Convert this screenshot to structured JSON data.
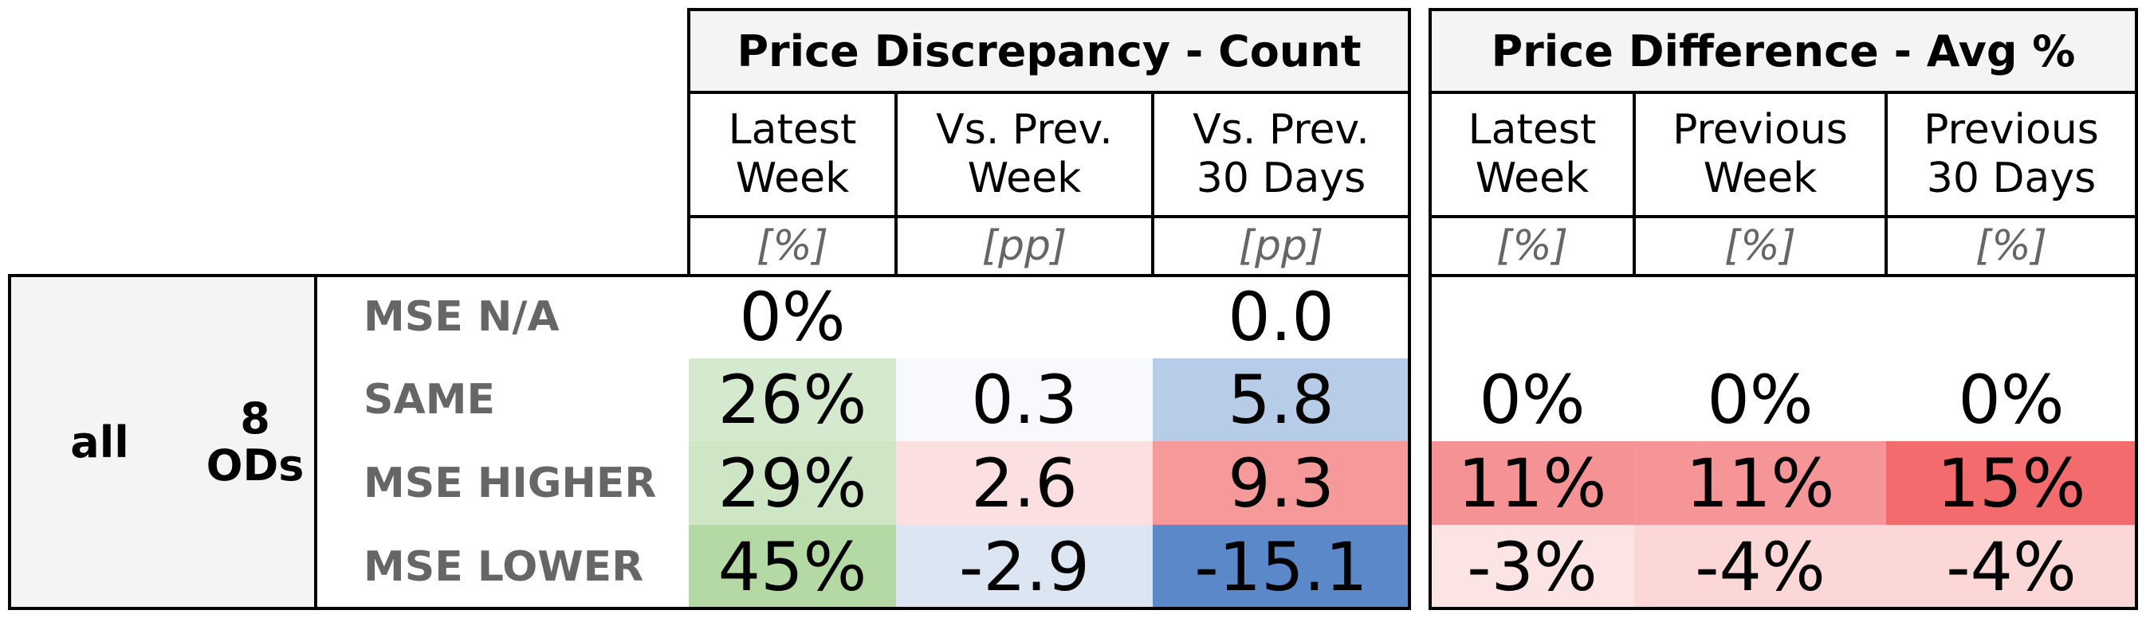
{
  "group_a": {
    "title": "Price Discrepancy - Count",
    "columns": [
      {
        "label_1": "Latest",
        "label_2": "Week",
        "unit": "[%]"
      },
      {
        "label_1": "Vs. Prev.",
        "label_2": "Week",
        "unit": "[pp]"
      },
      {
        "label_1": "Vs. Prev.",
        "label_2": "30 Days",
        "unit": "[pp]"
      }
    ]
  },
  "group_b": {
    "title": "Price Difference - Avg %",
    "columns": [
      {
        "label_1": "Latest",
        "label_2": "Week",
        "unit": "[%]"
      },
      {
        "label_1": "Previous",
        "label_2": "Week",
        "unit": "[%]"
      },
      {
        "label_1": "Previous",
        "label_2": "30 Days",
        "unit": "[%]"
      }
    ]
  },
  "segment": {
    "scope": "all",
    "count_1": "8",
    "count_2": "ODs"
  },
  "rows": [
    {
      "label": "MSE N/A",
      "a": [
        "0%",
        "",
        "0.0"
      ],
      "a_colors": [
        "#ffffff",
        "#ffffff",
        "#ffffff"
      ],
      "b": [
        "",
        "",
        ""
      ],
      "b_colors": [
        "#ffffff",
        "#ffffff",
        "#ffffff"
      ]
    },
    {
      "label": "SAME",
      "a": [
        "26%",
        "0.3",
        "5.8"
      ],
      "a_colors": [
        "#d4e9cd",
        "#f7f9fc",
        "#b7cce6"
      ],
      "b": [
        "0%",
        "0%",
        "0%"
      ],
      "b_colors": [
        "#ffffff",
        "#ffffff",
        "#ffffff"
      ]
    },
    {
      "label": "MSE HIGHER",
      "a": [
        "29%",
        "2.6",
        "9.3"
      ],
      "a_colors": [
        "#cfe6c6",
        "#fcdfe1",
        "#f6999b"
      ],
      "b": [
        "11%",
        "11%",
        "15%"
      ],
      "b_colors": [
        "#f59295",
        "#f59598",
        "#f36b6d"
      ]
    },
    {
      "label": "MSE LOWER",
      "a": [
        "45%",
        "-2.9",
        "-15.1"
      ],
      "a_colors": [
        "#b4d9a4",
        "#dce5f2",
        "#5b88c8"
      ],
      "b": [
        "-3%",
        "-4%",
        "-4%"
      ],
      "b_colors": [
        "#fce3e4",
        "#fbd7d8",
        "#fbd7d8"
      ]
    }
  ],
  "chart_data": {
    "type": "table",
    "row_labels": [
      "MSE N/A",
      "SAME",
      "MSE HIGHER",
      "MSE LOWER"
    ],
    "price_discrepancy_count": {
      "columns": [
        "Latest Week [%]",
        "Vs. Prev. Week [pp]",
        "Vs. Prev. 30 Days [pp]"
      ],
      "values": [
        [
          0,
          null,
          0.0
        ],
        [
          26,
          0.3,
          5.8
        ],
        [
          29,
          2.6,
          9.3
        ],
        [
          45,
          -2.9,
          -15.1
        ]
      ]
    },
    "price_difference_avg_pct": {
      "columns": [
        "Latest Week [%]",
        "Previous Week [%]",
        "Previous 30 Days [%]"
      ],
      "values": [
        [
          null,
          null,
          null
        ],
        [
          0,
          0,
          0
        ],
        [
          11,
          11,
          15
        ],
        [
          -3,
          -4,
          -4
        ]
      ]
    }
  }
}
